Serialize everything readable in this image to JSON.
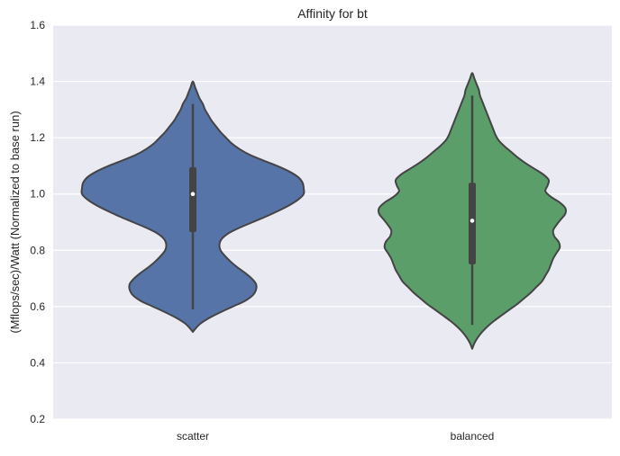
{
  "chart_data": {
    "type": "violin",
    "title": "Affinity for bt",
    "xlabel": "",
    "ylabel": "(Mflops/sec)/Watt (Normalized to base run)",
    "ylim": [
      0.2,
      1.6
    ],
    "yticks": [
      "0.2",
      "0.4",
      "0.6",
      "0.8",
      "1.0",
      "1.2",
      "1.4",
      "1.6"
    ],
    "categories": [
      "scatter",
      "balanced"
    ],
    "grid": true,
    "colors": {
      "background": "#EAEAF2",
      "grid": "#FFFFFF",
      "outline": "#444444",
      "box": "#444444",
      "median": "#FFFFFF"
    },
    "series": [
      {
        "category": "scatter",
        "color": "#5674A8",
        "min": 0.59,
        "q1": 0.865,
        "median": 1.0,
        "q3": 1.095,
        "max": 1.32,
        "kde_min": 0.51,
        "kde_max": 1.4,
        "density": [
          [
            0.51,
            0.0
          ],
          [
            0.52,
            0.02
          ],
          [
            0.54,
            0.07
          ],
          [
            0.56,
            0.15
          ],
          [
            0.58,
            0.25
          ],
          [
            0.6,
            0.36
          ],
          [
            0.62,
            0.47
          ],
          [
            0.64,
            0.54
          ],
          [
            0.66,
            0.57
          ],
          [
            0.68,
            0.57
          ],
          [
            0.7,
            0.53
          ],
          [
            0.72,
            0.47
          ],
          [
            0.74,
            0.4
          ],
          [
            0.76,
            0.34
          ],
          [
            0.78,
            0.29
          ],
          [
            0.8,
            0.25
          ],
          [
            0.82,
            0.24
          ],
          [
            0.84,
            0.26
          ],
          [
            0.86,
            0.32
          ],
          [
            0.88,
            0.42
          ],
          [
            0.9,
            0.54
          ],
          [
            0.92,
            0.66
          ],
          [
            0.94,
            0.77
          ],
          [
            0.96,
            0.87
          ],
          [
            0.98,
            0.95
          ],
          [
            1.0,
            1.0
          ],
          [
            1.02,
            1.0
          ],
          [
            1.04,
            0.99
          ],
          [
            1.06,
            0.95
          ],
          [
            1.08,
            0.87
          ],
          [
            1.1,
            0.76
          ],
          [
            1.12,
            0.63
          ],
          [
            1.14,
            0.51
          ],
          [
            1.16,
            0.42
          ],
          [
            1.18,
            0.35
          ],
          [
            1.2,
            0.3
          ],
          [
            1.22,
            0.25
          ],
          [
            1.24,
            0.21
          ],
          [
            1.26,
            0.17
          ],
          [
            1.28,
            0.14
          ],
          [
            1.3,
            0.11
          ],
          [
            1.32,
            0.09
          ],
          [
            1.34,
            0.06
          ],
          [
            1.36,
            0.04
          ],
          [
            1.38,
            0.02
          ],
          [
            1.4,
            0.0
          ]
        ]
      },
      {
        "category": "balanced",
        "color": "#5B9E6A",
        "min": 0.535,
        "q1": 0.75,
        "median": 0.905,
        "q3": 1.04,
        "max": 1.35,
        "kde_min": 0.45,
        "kde_max": 1.43,
        "density": [
          [
            0.45,
            0.0
          ],
          [
            0.47,
            0.02
          ],
          [
            0.49,
            0.05
          ],
          [
            0.51,
            0.09
          ],
          [
            0.53,
            0.14
          ],
          [
            0.55,
            0.2
          ],
          [
            0.57,
            0.27
          ],
          [
            0.59,
            0.34
          ],
          [
            0.61,
            0.41
          ],
          [
            0.63,
            0.47
          ],
          [
            0.65,
            0.53
          ],
          [
            0.67,
            0.58
          ],
          [
            0.69,
            0.63
          ],
          [
            0.71,
            0.66
          ],
          [
            0.73,
            0.69
          ],
          [
            0.75,
            0.71
          ],
          [
            0.77,
            0.73
          ],
          [
            0.79,
            0.76
          ],
          [
            0.81,
            0.79
          ],
          [
            0.83,
            0.78
          ],
          [
            0.85,
            0.74
          ],
          [
            0.87,
            0.73
          ],
          [
            0.89,
            0.76
          ],
          [
            0.91,
            0.8
          ],
          [
            0.93,
            0.84
          ],
          [
            0.95,
            0.84
          ],
          [
            0.97,
            0.79
          ],
          [
            0.99,
            0.71
          ],
          [
            1.01,
            0.66
          ],
          [
            1.03,
            0.68
          ],
          [
            1.05,
            0.69
          ],
          [
            1.07,
            0.64
          ],
          [
            1.09,
            0.56
          ],
          [
            1.11,
            0.48
          ],
          [
            1.13,
            0.41
          ],
          [
            1.15,
            0.35
          ],
          [
            1.17,
            0.29
          ],
          [
            1.19,
            0.24
          ],
          [
            1.21,
            0.21
          ],
          [
            1.23,
            0.19
          ],
          [
            1.25,
            0.17
          ],
          [
            1.27,
            0.15
          ],
          [
            1.29,
            0.13
          ],
          [
            1.31,
            0.11
          ],
          [
            1.33,
            0.09
          ],
          [
            1.35,
            0.07
          ],
          [
            1.37,
            0.06
          ],
          [
            1.39,
            0.04
          ],
          [
            1.41,
            0.02
          ],
          [
            1.43,
            0.0
          ]
        ]
      }
    ]
  }
}
